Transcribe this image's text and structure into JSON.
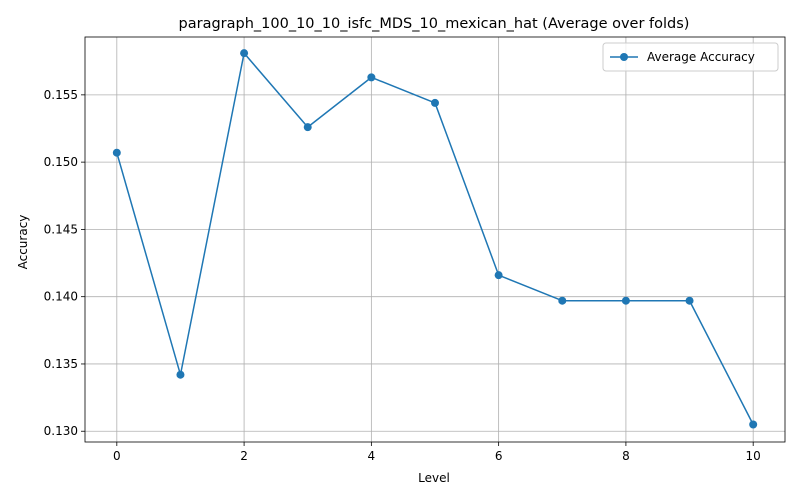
{
  "chart_data": {
    "type": "line",
    "title": "paragraph_100_10_10_isfc_MDS_10_mexican_hat (Average over folds)",
    "xlabel": "Level",
    "ylabel": "Accuracy",
    "x": [
      0,
      1,
      2,
      3,
      4,
      5,
      6,
      7,
      8,
      9,
      10
    ],
    "series": [
      {
        "name": "Average Accuracy",
        "values": [
          0.1507,
          0.1342,
          0.1581,
          0.1526,
          0.1563,
          0.1544,
          0.1416,
          0.1397,
          0.1397,
          0.1397,
          0.1305
        ]
      }
    ],
    "xlim": [
      -0.5,
      10.5
    ],
    "ylim": [
      0.1292,
      0.1593
    ],
    "xticks": [
      0,
      2,
      4,
      6,
      8,
      10
    ],
    "xtick_labels": [
      "0",
      "2",
      "4",
      "6",
      "8",
      "10"
    ],
    "yticks": [
      0.13,
      0.135,
      0.14,
      0.145,
      0.15,
      0.155
    ],
    "ytick_labels": [
      "0.130",
      "0.135",
      "0.140",
      "0.145",
      "0.150",
      "0.155"
    ],
    "grid": true,
    "legend_position": "top-right",
    "line_color": "#1f77b4",
    "marker": "circle"
  }
}
